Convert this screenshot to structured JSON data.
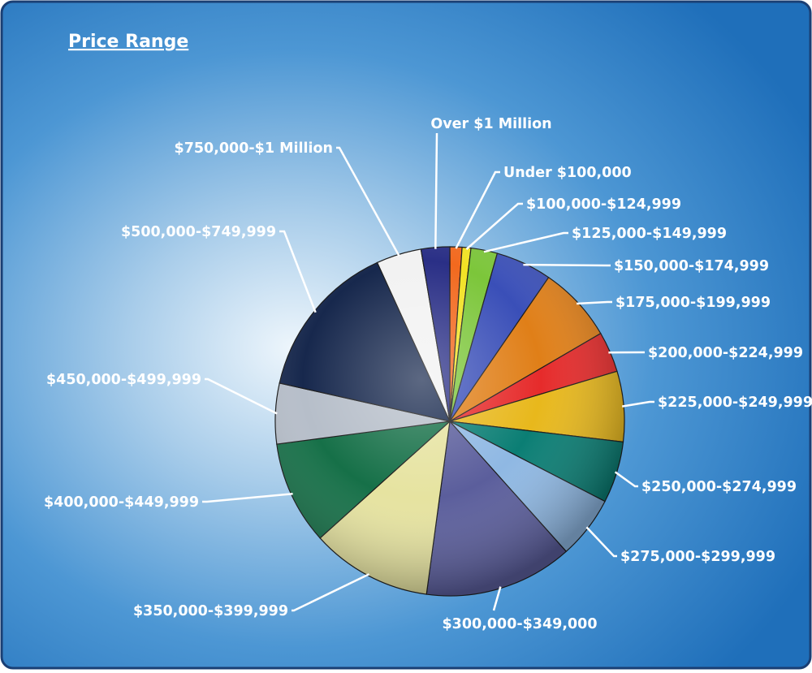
{
  "chart_data": {
    "type": "pie",
    "title": "Price Range",
    "legend": "none",
    "slices": [
      {
        "label": "Under $100,000",
        "value": 1.1,
        "color": "#f2691e"
      },
      {
        "label": "$100,000-$124,999",
        "value": 0.8,
        "color": "#f2e224"
      },
      {
        "label": "$125,000-$149,999",
        "value": 2.4,
        "color": "#7cc63a"
      },
      {
        "label": "$150,000-$174,999",
        "value": 5.1,
        "color": "#3a4fb8"
      },
      {
        "label": "$175,000-$199,999",
        "value": 6.9,
        "color": "#e07f18"
      },
      {
        "label": "$200,000-$224,999",
        "value": 3.7,
        "color": "#e62b2b"
      },
      {
        "label": "$225,000-$249,999",
        "value": 6.4,
        "color": "#e8b81c"
      },
      {
        "label": "$250,000-$274,999",
        "value": 5.6,
        "color": "#0b7e74"
      },
      {
        "label": "$275,000-$299,999",
        "value": 5.7,
        "color": "#8fb8e3"
      },
      {
        "label": "$300,000-$349,000",
        "value": 13.5,
        "color": "#5b5e9c"
      },
      {
        "label": "$350,000-$399,999",
        "value": 11.0,
        "color": "#e6e3a0"
      },
      {
        "label": "$400,000-$449,999",
        "value": 9.4,
        "color": "#167048"
      },
      {
        "label": "$450,000-$499,999",
        "value": 5.5,
        "color": "#b6bec9"
      },
      {
        "label": "$500,000-$749,999",
        "value": 14.4,
        "color": "#17284d"
      },
      {
        "label": "$750,000-$1 Million",
        "value": 4.1,
        "color": "#f2f2f2"
      },
      {
        "label": "Over $1 Million",
        "value": 2.6,
        "color": "#2a2f86"
      }
    ]
  }
}
